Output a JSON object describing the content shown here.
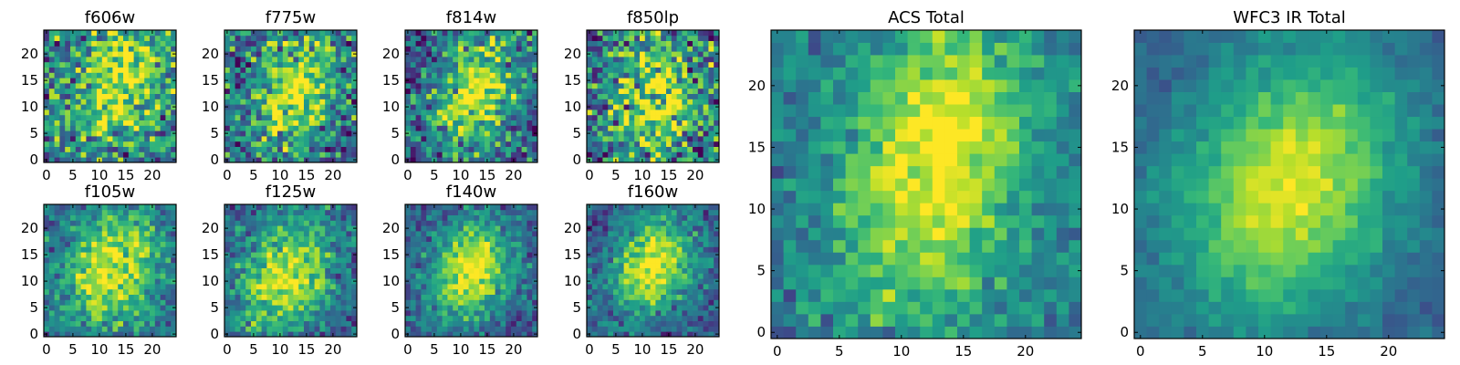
{
  "figure": {
    "colormap": "viridis",
    "colormap_stops": [
      "#440154",
      "#482878",
      "#3e4989",
      "#31688e",
      "#26828e",
      "#1f9e89",
      "#35b779",
      "#6ece58",
      "#b5de2b",
      "#fde725"
    ],
    "background": "#ffffff"
  },
  "chart_data": [
    {
      "type": "heatmap",
      "title": "f606w",
      "grid_size": [
        25,
        25
      ],
      "xlim": [
        0,
        24
      ],
      "ylim": [
        0,
        24
      ],
      "xticks": [
        "0",
        "5",
        "10",
        "15",
        "20"
      ],
      "yticks": [
        "0",
        "5",
        "10",
        "15",
        "20"
      ],
      "xtick_values": [
        0,
        5,
        10,
        15,
        20
      ],
      "ytick_values": [
        0,
        5,
        10,
        15,
        20
      ],
      "blob": {
        "center_x": 14,
        "center_y": 15,
        "sigma_x": 6,
        "sigma_y": 8,
        "tilt_deg": 10,
        "amplitude": 0.55
      },
      "noise": 0.28,
      "background_level": 0.4,
      "seed": 11
    },
    {
      "type": "heatmap",
      "title": "f775w",
      "grid_size": [
        25,
        25
      ],
      "xlim": [
        0,
        24
      ],
      "ylim": [
        0,
        24
      ],
      "xticks": [
        "0",
        "5",
        "10",
        "15",
        "20"
      ],
      "yticks": [
        "0",
        "5",
        "10",
        "15",
        "20"
      ],
      "xtick_values": [
        0,
        5,
        10,
        15,
        20
      ],
      "ytick_values": [
        0,
        5,
        10,
        15,
        20
      ],
      "blob": {
        "center_x": 13,
        "center_y": 13,
        "sigma_x": 5,
        "sigma_y": 8,
        "tilt_deg": 15,
        "amplitude": 0.6
      },
      "noise": 0.26,
      "background_level": 0.35,
      "seed": 23
    },
    {
      "type": "heatmap",
      "title": "f814w",
      "grid_size": [
        25,
        25
      ],
      "xlim": [
        0,
        24
      ],
      "ylim": [
        0,
        24
      ],
      "xticks": [
        "0",
        "5",
        "10",
        "15",
        "20"
      ],
      "yticks": [
        "0",
        "5",
        "10",
        "15",
        "20"
      ],
      "xtick_values": [
        0,
        5,
        10,
        15,
        20
      ],
      "ytick_values": [
        0,
        5,
        10,
        15,
        20
      ],
      "blob": {
        "center_x": 13,
        "center_y": 13,
        "sigma_x": 5,
        "sigma_y": 8,
        "tilt_deg": 20,
        "amplitude": 0.65
      },
      "noise": 0.24,
      "background_level": 0.3,
      "seed": 37
    },
    {
      "type": "heatmap",
      "title": "f850lp",
      "grid_size": [
        25,
        25
      ],
      "xlim": [
        0,
        24
      ],
      "ylim": [
        0,
        24
      ],
      "xticks": [
        "0",
        "5",
        "10",
        "15",
        "20"
      ],
      "yticks": [
        "0",
        "5",
        "10",
        "15",
        "20"
      ],
      "xtick_values": [
        0,
        5,
        10,
        15,
        20
      ],
      "ytick_values": [
        0,
        5,
        10,
        15,
        20
      ],
      "blob": {
        "center_x": 13,
        "center_y": 11,
        "sigma_x": 6,
        "sigma_y": 8,
        "tilt_deg": 10,
        "amplitude": 0.55
      },
      "noise": 0.3,
      "background_level": 0.35,
      "seed": 41
    },
    {
      "type": "heatmap",
      "title": "f105w",
      "grid_size": [
        25,
        25
      ],
      "xlim": [
        0,
        24
      ],
      "ylim": [
        0,
        24
      ],
      "xticks": [
        "0",
        "5",
        "10",
        "15",
        "20"
      ],
      "yticks": [
        "0",
        "5",
        "10",
        "15",
        "20"
      ],
      "xtick_values": [
        0,
        5,
        10,
        15,
        20
      ],
      "ytick_values": [
        0,
        5,
        10,
        15,
        20
      ],
      "blob": {
        "center_x": 12,
        "center_y": 12,
        "sigma_x": 6,
        "sigma_y": 8,
        "tilt_deg": 25,
        "amplitude": 0.6
      },
      "noise": 0.16,
      "background_level": 0.35,
      "seed": 53
    },
    {
      "type": "heatmap",
      "title": "f125w",
      "grid_size": [
        25,
        25
      ],
      "xlim": [
        0,
        24
      ],
      "ylim": [
        0,
        24
      ],
      "xticks": [
        "0",
        "5",
        "10",
        "15",
        "20"
      ],
      "yticks": [
        "0",
        "5",
        "10",
        "15",
        "20"
      ],
      "xtick_values": [
        0,
        5,
        10,
        15,
        20
      ],
      "ytick_values": [
        0,
        5,
        10,
        15,
        20
      ],
      "blob": {
        "center_x": 11,
        "center_y": 11,
        "sigma_x": 6,
        "sigma_y": 8,
        "tilt_deg": 25,
        "amplitude": 0.65
      },
      "noise": 0.16,
      "background_level": 0.3,
      "seed": 67
    },
    {
      "type": "heatmap",
      "title": "f140w",
      "grid_size": [
        25,
        25
      ],
      "xlim": [
        0,
        24
      ],
      "ylim": [
        0,
        24
      ],
      "xticks": [
        "0",
        "5",
        "10",
        "15",
        "20"
      ],
      "yticks": [
        "0",
        "5",
        "10",
        "15",
        "20"
      ],
      "xtick_values": [
        0,
        5,
        10,
        15,
        20
      ],
      "ytick_values": [
        0,
        5,
        10,
        15,
        20
      ],
      "blob": {
        "center_x": 12,
        "center_y": 12,
        "sigma_x": 5,
        "sigma_y": 7,
        "tilt_deg": 25,
        "amplitude": 0.7
      },
      "noise": 0.14,
      "background_level": 0.28,
      "seed": 79
    },
    {
      "type": "heatmap",
      "title": "f160w",
      "grid_size": [
        25,
        25
      ],
      "xlim": [
        0,
        24
      ],
      "ylim": [
        0,
        24
      ],
      "xticks": [
        "0",
        "5",
        "10",
        "15",
        "20"
      ],
      "yticks": [
        "0",
        "5",
        "10",
        "15",
        "20"
      ],
      "xtick_values": [
        0,
        5,
        10,
        15,
        20
      ],
      "ytick_values": [
        0,
        5,
        10,
        15,
        20
      ],
      "blob": {
        "center_x": 12,
        "center_y": 13,
        "sigma_x": 5,
        "sigma_y": 7,
        "tilt_deg": 25,
        "amplitude": 0.7
      },
      "noise": 0.14,
      "background_level": 0.28,
      "seed": 83
    },
    {
      "type": "heatmap",
      "title": "ACS Total",
      "grid_size": [
        25,
        25
      ],
      "xlim": [
        0,
        24
      ],
      "ylim": [
        0,
        24
      ],
      "xticks": [
        "0",
        "5",
        "10",
        "15",
        "20"
      ],
      "yticks": [
        "0",
        "5",
        "10",
        "15",
        "20"
      ],
      "xtick_values": [
        0,
        5,
        10,
        15,
        20
      ],
      "ytick_values": [
        0,
        5,
        10,
        15,
        20
      ],
      "blob": {
        "center_x": 13,
        "center_y": 14,
        "sigma_x": 5,
        "sigma_y": 9,
        "tilt_deg": 15,
        "amplitude": 0.6
      },
      "noise": 0.12,
      "background_level": 0.4,
      "seed": 97
    },
    {
      "type": "heatmap",
      "title": "WFC3 IR Total",
      "grid_size": [
        25,
        25
      ],
      "xlim": [
        0,
        24
      ],
      "ylim": [
        0,
        24
      ],
      "xticks": [
        "0",
        "5",
        "10",
        "15",
        "20"
      ],
      "yticks": [
        "0",
        "5",
        "10",
        "15",
        "20"
      ],
      "xtick_values": [
        0,
        5,
        10,
        15,
        20
      ],
      "ytick_values": [
        0,
        5,
        10,
        15,
        20
      ],
      "blob": {
        "center_x": 12,
        "center_y": 12,
        "sigma_x": 6,
        "sigma_y": 8,
        "tilt_deg": 25,
        "amplitude": 0.65
      },
      "noise": 0.06,
      "background_level": 0.3,
      "seed": 101
    }
  ]
}
